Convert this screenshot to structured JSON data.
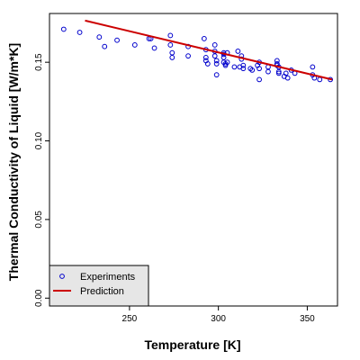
{
  "chart_data": {
    "type": "scatter",
    "title": "",
    "xlabel": "Temperature [K]",
    "ylabel": "Thermal Conductivity of Liquid [W/m*K]",
    "xlim": [
      205,
      367
    ],
    "ylim": [
      -0.005,
      0.181
    ],
    "xticks": [
      "250",
      "300",
      "350"
    ],
    "yticks": [
      "0.00",
      "0.05",
      "0.10",
      "0.15"
    ],
    "grid": false,
    "legend_position": "bottom-left",
    "series": [
      {
        "name": "Experiments",
        "kind": "points",
        "color": "#0000cc",
        "points": [
          [
            213,
            0.171
          ],
          [
            222,
            0.169
          ],
          [
            233,
            0.166
          ],
          [
            236,
            0.16
          ],
          [
            243,
            0.164
          ],
          [
            253,
            0.161
          ],
          [
            261,
            0.165
          ],
          [
            262,
            0.165
          ],
          [
            264,
            0.159
          ],
          [
            273,
            0.167
          ],
          [
            273,
            0.161
          ],
          [
            274,
            0.156
          ],
          [
            274,
            0.153
          ],
          [
            283,
            0.16
          ],
          [
            283,
            0.154
          ],
          [
            292,
            0.165
          ],
          [
            293,
            0.158
          ],
          [
            293,
            0.153
          ],
          [
            293,
            0.151
          ],
          [
            294,
            0.149
          ],
          [
            298,
            0.161
          ],
          [
            298,
            0.157
          ],
          [
            298,
            0.154
          ],
          [
            299,
            0.151
          ],
          [
            299,
            0.149
          ],
          [
            299,
            0.142
          ],
          [
            303,
            0.156
          ],
          [
            303,
            0.155
          ],
          [
            303,
            0.153
          ],
          [
            303,
            0.15
          ],
          [
            304,
            0.149
          ],
          [
            304,
            0.148
          ],
          [
            305,
            0.156
          ],
          [
            305,
            0.15
          ],
          [
            309,
            0.147
          ],
          [
            311,
            0.157
          ],
          [
            312,
            0.147
          ],
          [
            313,
            0.154
          ],
          [
            313,
            0.152
          ],
          [
            314,
            0.148
          ],
          [
            314,
            0.146
          ],
          [
            318,
            0.146
          ],
          [
            319,
            0.145
          ],
          [
            322,
            0.148
          ],
          [
            323,
            0.15
          ],
          [
            323,
            0.146
          ],
          [
            323,
            0.139
          ],
          [
            328,
            0.144
          ],
          [
            328,
            0.147
          ],
          [
            333,
            0.151
          ],
          [
            333,
            0.149
          ],
          [
            333,
            0.148
          ],
          [
            334,
            0.147
          ],
          [
            334,
            0.144
          ],
          [
            334,
            0.143
          ],
          [
            337,
            0.141
          ],
          [
            338,
            0.143
          ],
          [
            339,
            0.14
          ],
          [
            341,
            0.145
          ],
          [
            343,
            0.143
          ],
          [
            353,
            0.147
          ],
          [
            353,
            0.142
          ],
          [
            354,
            0.14
          ],
          [
            357,
            0.139
          ],
          [
            363,
            0.139
          ]
        ]
      },
      {
        "name": "Prediction",
        "kind": "line",
        "color": "#cc0000",
        "points": [
          [
            225,
            0.1765
          ],
          [
            364,
            0.139
          ]
        ]
      }
    ]
  }
}
